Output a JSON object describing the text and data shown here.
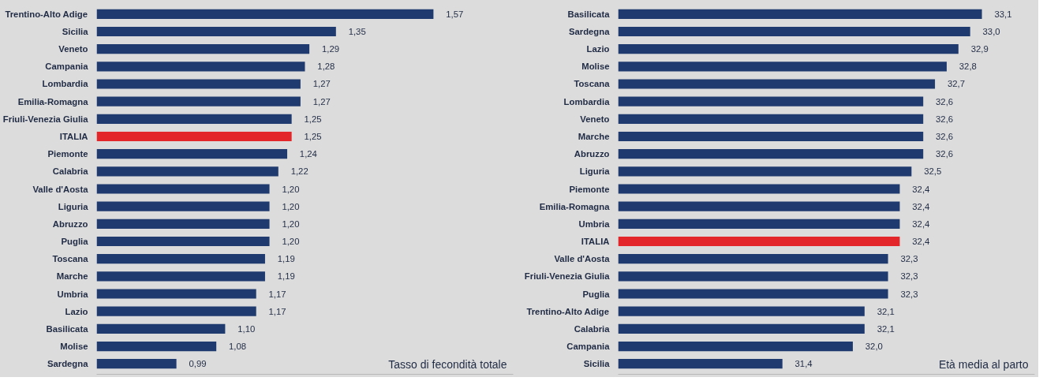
{
  "chart_data": [
    {
      "type": "bar",
      "orientation": "horizontal",
      "categories": [
        "Trentino-Alto Adige",
        "Sicilia",
        "Veneto",
        "Campania",
        "Lombardia",
        "Emilia-Romagna",
        "Friuli-Venezia Giulia",
        "ITALIA",
        "Piemonte",
        "Calabria",
        "Valle d'Aosta",
        "Liguria",
        "Abruzzo",
        "Puglia",
        "Toscana",
        "Marche",
        "Umbria",
        "Lazio",
        "Basilicata",
        "Molise",
        "Sardegna"
      ],
      "values": [
        1.57,
        1.35,
        1.29,
        1.28,
        1.27,
        1.27,
        1.25,
        1.25,
        1.24,
        1.22,
        1.2,
        1.2,
        1.2,
        1.2,
        1.19,
        1.19,
        1.17,
        1.17,
        1.1,
        1.08,
        0.99
      ],
      "xlim": [
        0.81,
        1.75
      ],
      "value_labels": [
        "1,57",
        "1,35",
        "1,29",
        "1,28",
        "1,27",
        "1,27",
        "1,25",
        "1,25",
        "1,24",
        "1,22",
        "1,20",
        "1,20",
        "1,20",
        "1,20",
        "1,19",
        "1,19",
        "1,17",
        "1,17",
        "1,10",
        "1,08",
        "0,99"
      ],
      "colors": [
        "#1f3a6e",
        "#1f3a6e",
        "#1f3a6e",
        "#1f3a6e",
        "#1f3a6e",
        "#1f3a6e",
        "#1f3a6e",
        "#e3262a",
        "#1f3a6e",
        "#1f3a6e",
        "#1f3a6e",
        "#1f3a6e",
        "#1f3a6e",
        "#1f3a6e",
        "#1f3a6e",
        "#1f3a6e",
        "#1f3a6e",
        "#1f3a6e",
        "#1f3a6e",
        "#1f3a6e",
        "#1f3a6e"
      ],
      "tick_labels": "y",
      "grid": false,
      "annotations": [
        "Tasso di fecondità totale"
      ]
    },
    {
      "type": "bar",
      "orientation": "horizontal",
      "categories": [
        "Basilicata",
        "Sardegna",
        "Lazio",
        "Molise",
        "Toscana",
        "Lombardia",
        "Veneto",
        "Marche",
        "Abruzzo",
        "Liguria",
        "Piemonte",
        "Emilia-Romagna",
        "Umbria",
        "ITALIA",
        "Valle d'Aosta",
        "Friuli-Venezia Giulia",
        "Puglia",
        "Trentino-Alto Adige",
        "Calabria",
        "Campania",
        "Sicilia"
      ],
      "values": [
        33.1,
        33.0,
        32.9,
        32.8,
        32.7,
        32.6,
        32.6,
        32.6,
        32.6,
        32.5,
        32.4,
        32.4,
        32.4,
        32.4,
        32.3,
        32.3,
        32.3,
        32.1,
        32.1,
        32.0,
        31.4
      ],
      "xlim": [
        30.0,
        33.55
      ],
      "value_labels": [
        "33,1",
        "33,0",
        "32,9",
        "32,8",
        "32,7",
        "32,6",
        "32,6",
        "32,6",
        "32,6",
        "32,5",
        "32,4",
        "32,4",
        "32,4",
        "32,4",
        "32,3",
        "32,3",
        "32,3",
        "32,1",
        "32,1",
        "32,0",
        "31,4"
      ],
      "colors": [
        "#1f3a6e",
        "#1f3a6e",
        "#1f3a6e",
        "#1f3a6e",
        "#1f3a6e",
        "#1f3a6e",
        "#1f3a6e",
        "#1f3a6e",
        "#1f3a6e",
        "#1f3a6e",
        "#1f3a6e",
        "#1f3a6e",
        "#1f3a6e",
        "#e3262a",
        "#1f3a6e",
        "#1f3a6e",
        "#1f3a6e",
        "#1f3a6e",
        "#1f3a6e",
        "#1f3a6e",
        "#1f3a6e"
      ],
      "tick_labels": "y",
      "grid": false,
      "annotations": [
        "Età media al parto"
      ]
    }
  ]
}
